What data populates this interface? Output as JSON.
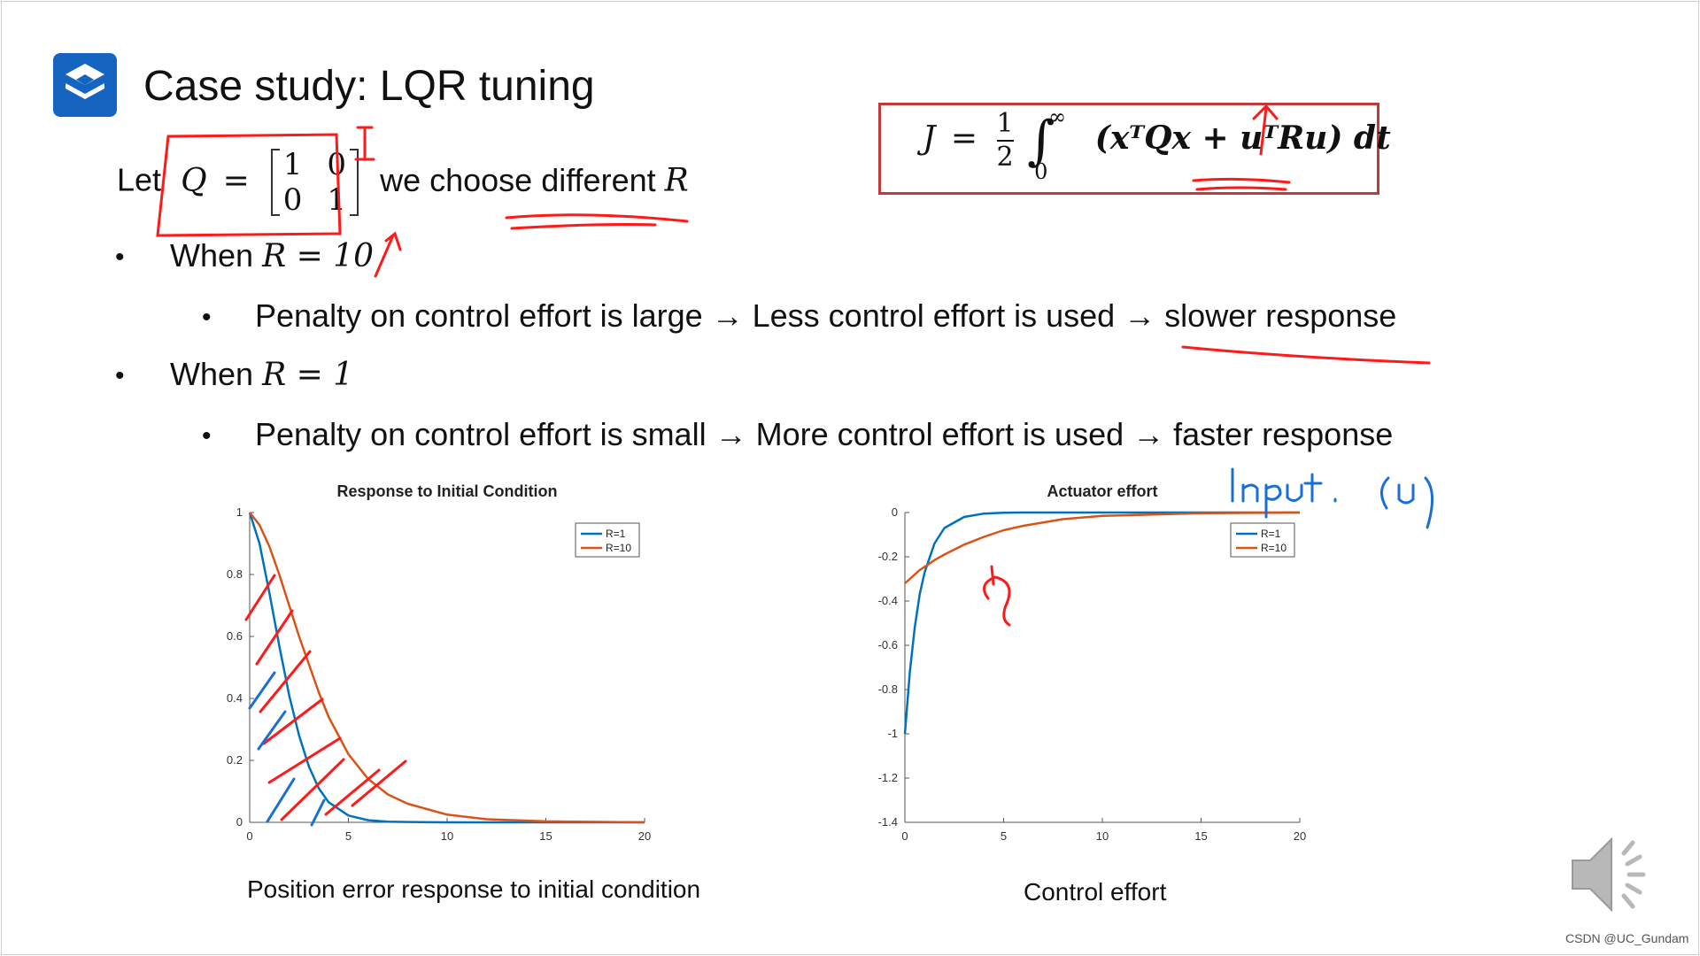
{
  "slide": {
    "title": "Case study: LQR tuning",
    "logo_icon": "stacked-layers-logo"
  },
  "let_line": {
    "let": "Let",
    "Q": "Q",
    "equals": "=",
    "matrix": [
      [
        "1",
        "0"
      ],
      [
        "0",
        "1"
      ]
    ],
    "we_choose": "we choose different",
    "R": "R"
  },
  "equation": {
    "J": "J",
    "equals": "=",
    "frac_num": "1",
    "frac_den": "2",
    "int_upper": "∞",
    "int_lower": "0",
    "integrand": "(xᵀQx + uᵀRu) dt"
  },
  "bullets": [
    {
      "prefix": "When",
      "math": "R = 10"
    },
    {
      "text": "Penalty on control effort is large → Less control effort is used → slower response"
    },
    {
      "prefix": "When",
      "math": "R = 1"
    },
    {
      "text": "Penalty on control effort is small → More control effort is used → faster response"
    }
  ],
  "charts": {
    "left_caption": "Position error response to initial condition",
    "right_caption": "Control effort"
  },
  "annotations": {
    "identity_mark": "I",
    "input_note": "Input. (u)",
    "curve_note": "ry"
  },
  "watermark": "CSDN @UC_Gundam",
  "chart_data": [
    {
      "type": "line",
      "title": "Response to Initial Condition",
      "xlabel": "",
      "ylabel": "",
      "xlim": [
        0,
        20
      ],
      "ylim": [
        0,
        1
      ],
      "xticks": [
        "0",
        "5",
        "10",
        "15",
        "20"
      ],
      "yticks": [
        "0",
        "0.2",
        "0.4",
        "0.6",
        "0.8",
        "1"
      ],
      "legend_position": "top-right",
      "x": [
        0,
        0.5,
        1,
        1.5,
        2,
        2.5,
        3,
        3.5,
        4,
        5,
        6,
        7,
        8,
        10,
        12,
        15,
        20
      ],
      "series": [
        {
          "name": "R=1",
          "color": "#0072BD",
          "values": [
            1,
            0.9,
            0.74,
            0.57,
            0.41,
            0.28,
            0.18,
            0.11,
            0.065,
            0.022,
            0.007,
            0.002,
            0.001,
            0,
            0,
            0,
            0
          ]
        },
        {
          "name": "R=10",
          "color": "#D95319",
          "values": [
            1,
            0.96,
            0.89,
            0.8,
            0.7,
            0.6,
            0.51,
            0.42,
            0.34,
            0.22,
            0.14,
            0.09,
            0.06,
            0.025,
            0.01,
            0.003,
            0
          ]
        }
      ]
    },
    {
      "type": "line",
      "title": "Actuator effort",
      "xlabel": "",
      "ylabel": "",
      "xlim": [
        0,
        20
      ],
      "ylim": [
        -1.4,
        0
      ],
      "xticks": [
        "0",
        "5",
        "10",
        "15",
        "20"
      ],
      "yticks": [
        "0",
        "-0.2",
        "-0.4",
        "-0.6",
        "-0.8",
        "-1",
        "-1.2",
        "-1.4"
      ],
      "legend_position": "top-right",
      "x": [
        0,
        0.25,
        0.5,
        0.75,
        1,
        1.5,
        2,
        3,
        4,
        5,
        6,
        8,
        10,
        15,
        20
      ],
      "series": [
        {
          "name": "R=1",
          "color": "#0072BD",
          "values": [
            -1,
            -0.72,
            -0.52,
            -0.37,
            -0.27,
            -0.14,
            -0.07,
            -0.02,
            -0.005,
            -0.001,
            0,
            0,
            0,
            0,
            0
          ]
        },
        {
          "name": "R=10",
          "color": "#D95319",
          "values": [
            -0.32,
            -0.3,
            -0.28,
            -0.26,
            -0.245,
            -0.215,
            -0.19,
            -0.145,
            -0.11,
            -0.08,
            -0.06,
            -0.03,
            -0.015,
            -0.003,
            0
          ]
        }
      ]
    }
  ]
}
